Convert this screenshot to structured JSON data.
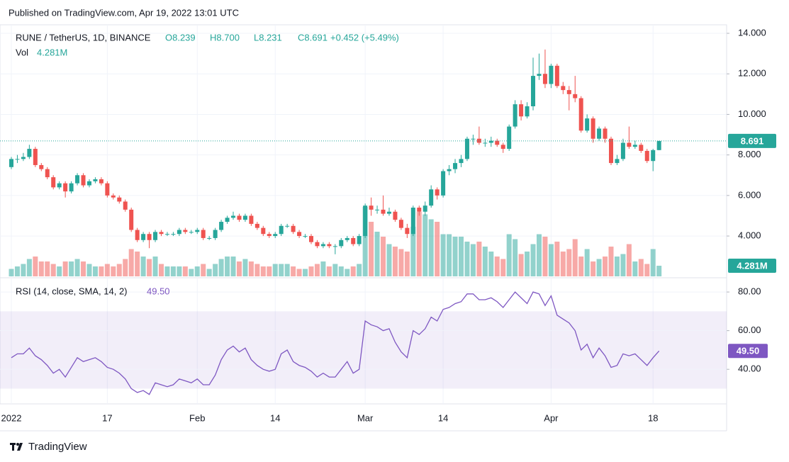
{
  "published": "Published on TradingView.com, Apr 19, 2022 13:01 UTC",
  "brand": "TradingView",
  "chart_data": [
    {
      "type": "candlestick",
      "title": "RUNE / TetherUS, 1D, BINANCE",
      "ohlc": [
        "O8.239",
        "H8.700",
        "L8.231",
        "C8.691"
      ],
      "change": "+0.452 (+5.49%)",
      "volume_title": "Vol",
      "volume_label": "4.281M",
      "up_color": "#26a69a",
      "down_color": "#ef5350",
      "categories": [
        "2022",
        null,
        null,
        null,
        null,
        null,
        null,
        null,
        null,
        null,
        null,
        null,
        null,
        null,
        null,
        null,
        "17",
        null,
        null,
        null,
        null,
        null,
        null,
        null,
        null,
        null,
        null,
        null,
        null,
        null,
        null,
        "Feb",
        null,
        null,
        null,
        null,
        null,
        null,
        null,
        null,
        null,
        null,
        null,
        null,
        "14",
        null,
        null,
        null,
        null,
        null,
        null,
        null,
        null,
        null,
        null,
        null,
        null,
        null,
        null,
        "Mar",
        null,
        null,
        null,
        null,
        null,
        null,
        null,
        null,
        null,
        null,
        null,
        null,
        "14",
        null,
        null,
        null,
        null,
        null,
        null,
        null,
        null,
        null,
        null,
        null,
        null,
        null,
        null,
        null,
        null,
        null,
        "Apr",
        null,
        null,
        null,
        null,
        null,
        null,
        null,
        null,
        null,
        null,
        null,
        null,
        null,
        null,
        null,
        null,
        "18",
        null
      ],
      "open": [
        7.4,
        7.8,
        7.8,
        7.9,
        8.3,
        7.5,
        7.3,
        6.9,
        6.4,
        6.6,
        6.2,
        6.6,
        7.0,
        6.5,
        6.7,
        6.8,
        6.6,
        6.0,
        5.9,
        5.7,
        5.3,
        4.3,
        3.8,
        4.1,
        3.8,
        4.2,
        4.1,
        4.1,
        4.1,
        4.3,
        4.2,
        4.2,
        4.3,
        3.9,
        3.9,
        4.3,
        4.7,
        4.9,
        5.0,
        4.8,
        5.0,
        4.6,
        4.4,
        4.1,
        4.0,
        4.1,
        4.5,
        4.5,
        4.2,
        4.0,
        4.0,
        3.7,
        3.5,
        3.6,
        3.5,
        3.5,
        3.8,
        3.9,
        3.6,
        4.0,
        5.5,
        5.3,
        5.3,
        5.1,
        5.2,
        4.8,
        4.4,
        4.1,
        5.4,
        5.2,
        5.5,
        6.3,
        6.0,
        7.2,
        7.3,
        7.6,
        7.8,
        8.8,
        8.8,
        8.6,
        8.6,
        8.7,
        8.5,
        8.3,
        9.4,
        10.5,
        9.9,
        10.4,
        11.9,
        12.0,
        11.5,
        12.4,
        11.4,
        11.2,
        11.0,
        10.8,
        9.2,
        9.8,
        8.8,
        9.3,
        8.8,
        7.6,
        7.8,
        8.6,
        8.4,
        8.5,
        8.2,
        7.7,
        8.239
      ],
      "high": [
        7.9,
        8.0,
        8.1,
        8.5,
        8.4,
        7.6,
        7.4,
        7.0,
        6.7,
        6.7,
        6.7,
        7.1,
        7.1,
        6.8,
        6.9,
        6.9,
        6.7,
        6.1,
        6.0,
        5.8,
        5.4,
        4.4,
        4.2,
        4.2,
        4.3,
        4.3,
        4.2,
        4.2,
        4.4,
        4.4,
        4.3,
        4.4,
        4.4,
        4.0,
        4.4,
        4.8,
        5.0,
        5.2,
        5.1,
        5.1,
        5.1,
        4.7,
        4.5,
        4.2,
        4.2,
        4.6,
        4.6,
        4.6,
        4.3,
        4.1,
        4.1,
        3.8,
        3.7,
        3.7,
        3.6,
        3.9,
        4.0,
        4.0,
        4.1,
        5.6,
        5.9,
        5.5,
        6.0,
        5.4,
        5.3,
        4.9,
        4.6,
        5.5,
        5.5,
        5.7,
        6.5,
        6.4,
        7.3,
        7.5,
        7.8,
        8.0,
        8.9,
        9.0,
        9.4,
        8.8,
        8.9,
        8.8,
        8.6,
        9.5,
        10.7,
        10.7,
        10.6,
        12.8,
        13.0,
        13.2,
        12.5,
        12.5,
        11.6,
        11.4,
        11.9,
        10.9,
        10.0,
        9.9,
        9.4,
        9.4,
        8.9,
        8.0,
        8.8,
        9.4,
        8.7,
        8.6,
        8.3,
        8.3,
        8.7
      ],
      "low": [
        7.3,
        7.6,
        7.7,
        7.8,
        7.4,
        7.2,
        6.8,
        6.3,
        6.3,
        5.9,
        6.1,
        6.5,
        6.4,
        6.4,
        6.6,
        6.5,
        5.9,
        5.8,
        5.6,
        5.2,
        4.2,
        3.7,
        3.7,
        3.4,
        3.7,
        4.0,
        4.0,
        4.0,
        4.0,
        4.1,
        4.1,
        4.1,
        3.8,
        3.8,
        3.8,
        4.2,
        4.6,
        4.8,
        4.7,
        4.7,
        4.5,
        4.3,
        4.0,
        3.9,
        3.9,
        4.0,
        4.4,
        4.1,
        3.9,
        3.9,
        3.6,
        3.4,
        3.4,
        3.4,
        3.1,
        3.4,
        3.7,
        3.5,
        3.5,
        3.9,
        5.0,
        5.1,
        5.0,
        5.0,
        4.7,
        4.3,
        3.9,
        4.0,
        5.0,
        5.0,
        5.4,
        5.8,
        5.9,
        7.0,
        7.1,
        7.4,
        7.7,
        8.5,
        8.5,
        8.4,
        8.4,
        8.4,
        8.1,
        8.2,
        9.3,
        9.7,
        9.8,
        10.2,
        11.7,
        11.3,
        11.3,
        11.3,
        11.0,
        10.2,
        10.6,
        9.1,
        9.1,
        8.6,
        8.7,
        8.6,
        7.5,
        7.5,
        7.7,
        8.3,
        8.3,
        8.1,
        7.6,
        7.2,
        8.231
      ],
      "close": [
        7.8,
        7.8,
        7.9,
        8.3,
        7.5,
        7.3,
        6.9,
        6.4,
        6.6,
        6.2,
        6.6,
        7.0,
        6.5,
        6.7,
        6.8,
        6.6,
        6.0,
        5.9,
        5.7,
        5.3,
        4.3,
        3.8,
        4.1,
        3.8,
        4.2,
        4.1,
        4.1,
        4.1,
        4.3,
        4.2,
        4.2,
        4.3,
        3.9,
        3.9,
        4.3,
        4.7,
        4.9,
        5.0,
        4.8,
        5.0,
        4.6,
        4.4,
        4.1,
        4.0,
        4.1,
        4.5,
        4.5,
        4.2,
        4.0,
        4.0,
        3.7,
        3.5,
        3.6,
        3.5,
        3.5,
        3.8,
        3.9,
        3.6,
        4.0,
        5.5,
        5.3,
        5.3,
        5.1,
        5.2,
        4.8,
        4.4,
        4.1,
        5.4,
        5.2,
        5.5,
        6.3,
        6.0,
        7.2,
        7.3,
        7.6,
        7.8,
        8.8,
        8.8,
        8.6,
        8.6,
        8.7,
        8.5,
        8.3,
        9.4,
        10.5,
        9.9,
        10.4,
        11.9,
        12.0,
        11.5,
        12.4,
        11.4,
        11.2,
        11.0,
        10.8,
        9.2,
        9.8,
        8.8,
        9.3,
        8.8,
        7.6,
        7.8,
        8.6,
        8.4,
        8.5,
        8.2,
        7.7,
        8.239,
        8.691
      ],
      "volume": [
        3,
        4,
        5,
        7,
        8,
        6,
        6,
        5,
        4,
        6,
        6,
        7,
        6,
        5,
        4,
        4,
        5,
        4,
        5,
        7,
        11,
        10,
        8,
        7,
        8,
        5,
        4,
        4,
        4,
        4,
        3,
        4,
        5,
        3,
        5,
        7,
        8,
        8,
        6,
        7,
        6,
        5,
        4,
        4,
        5,
        5,
        5,
        4,
        3,
        3,
        4,
        5,
        6,
        4,
        5,
        4,
        3,
        4,
        5,
        28,
        22,
        18,
        16,
        13,
        12,
        11,
        10,
        20,
        26,
        25,
        23,
        22,
        17,
        17,
        16,
        16,
        14,
        13,
        14,
        12,
        10,
        8,
        7,
        17,
        15,
        9,
        10,
        13,
        17,
        16,
        13,
        14,
        10,
        11,
        15,
        8,
        11,
        6,
        7,
        8,
        12,
        8,
        9,
        13,
        6,
        7,
        5,
        11,
        4.281
      ],
      "ylim": [
        1.94,
        14.42
      ],
      "vlim": [
        0,
        60
      ],
      "yticks": [
        {
          "value": 4,
          "label": "4.000"
        },
        {
          "value": 6,
          "label": "6.000"
        },
        {
          "value": 8,
          "label": "8.000"
        },
        {
          "value": 10,
          "label": "10.000"
        },
        {
          "value": 12,
          "label": "12.000"
        },
        {
          "value": 14,
          "label": "14.000"
        }
      ],
      "grid": true
    },
    {
      "type": "line",
      "title": "RSI (14, close, SMA, 14, 2)",
      "current_value": "49.50",
      "color": "#7e57c2",
      "band": [
        30,
        70
      ],
      "values": [
        46,
        48,
        48,
        51,
        47,
        45,
        42,
        38,
        40,
        36,
        41,
        46,
        44,
        45,
        46,
        44,
        41,
        40,
        38,
        35,
        30,
        28,
        29,
        27,
        33,
        32,
        31,
        32,
        35,
        34,
        33,
        35,
        32,
        32,
        37,
        45,
        50,
        52,
        49,
        51,
        45,
        42,
        40,
        39,
        40,
        48,
        50,
        44,
        42,
        41,
        39,
        36,
        38,
        36,
        36,
        40,
        44,
        38,
        40,
        65,
        63,
        62,
        60,
        61,
        54,
        49,
        46,
        60,
        58,
        61,
        67,
        65,
        71,
        72,
        74,
        75,
        79,
        79,
        76,
        76,
        77,
        75,
        72,
        76,
        80,
        77,
        74,
        80,
        79,
        73,
        78,
        68,
        66,
        64,
        60,
        50,
        53,
        46,
        51,
        47,
        41,
        42,
        48,
        47,
        48,
        45,
        42,
        46,
        49.5
      ],
      "ylim": [
        22.1,
        87
      ],
      "yticks": [
        {
          "value": 40,
          "label": "40.00"
        },
        {
          "value": 60,
          "label": "60.00"
        },
        {
          "value": 80,
          "label": "80.00"
        }
      ],
      "grid": true
    }
  ]
}
